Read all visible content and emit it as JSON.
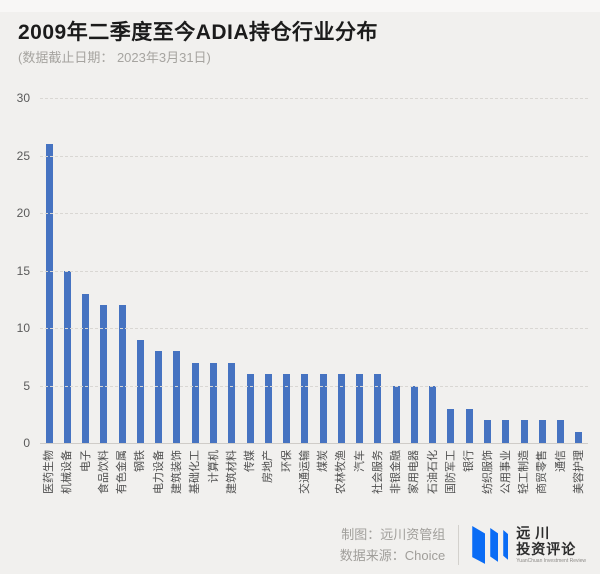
{
  "header": {
    "title": "2009年二季度至今ADIA持仓行业分布",
    "subtitle": "(数据截止日期： 2023年3月31日)"
  },
  "chart_data": {
    "type": "bar",
    "title": "2009年二季度至今ADIA持仓行业分布",
    "subtitle": "(数据截止日期： 2023年3月31日)",
    "categories": [
      "医药生物",
      "机械设备",
      "电子",
      "食品饮料",
      "有色金属",
      "钢铁",
      "电力设备",
      "建筑装饰",
      "基础化工",
      "计算机",
      "建筑材料",
      "传媒",
      "房地产",
      "环保",
      "交通运输",
      "煤炭",
      "农林牧渔",
      "汽车",
      "社会服务",
      "非银金融",
      "家用电器",
      "石油石化",
      "国防军工",
      "银行",
      "纺织服饰",
      "公用事业",
      "轻工制造",
      "商贸零售",
      "通信",
      "美容护理"
    ],
    "values": [
      26,
      15,
      13,
      12,
      12,
      9,
      8,
      8,
      7,
      7,
      7,
      6,
      6,
      6,
      6,
      6,
      6,
      6,
      6,
      5,
      5,
      5,
      3,
      3,
      2,
      2,
      2,
      2,
      2,
      1
    ],
    "xlabel": "",
    "ylabel": "",
    "ylim": [
      0,
      30
    ],
    "yticks": [
      0,
      5,
      10,
      15,
      20,
      25,
      30
    ],
    "grid": "horizontal-dashed",
    "legend": "none",
    "colors": {
      "bar": "#4673c1",
      "background": "#f1f0ee",
      "gridline": "#d9d7d3",
      "axis_text": "#5a5a5a"
    }
  },
  "footer": {
    "credit_label": "制图：远川资管组",
    "source_label": "数据来源：Choice",
    "logo": {
      "icon": "three-blue-slanted-bars",
      "color": "#0a6cf5",
      "line1": "远川",
      "line2": "投资评论",
      "line3": "YuanChuan Investment Review"
    }
  }
}
